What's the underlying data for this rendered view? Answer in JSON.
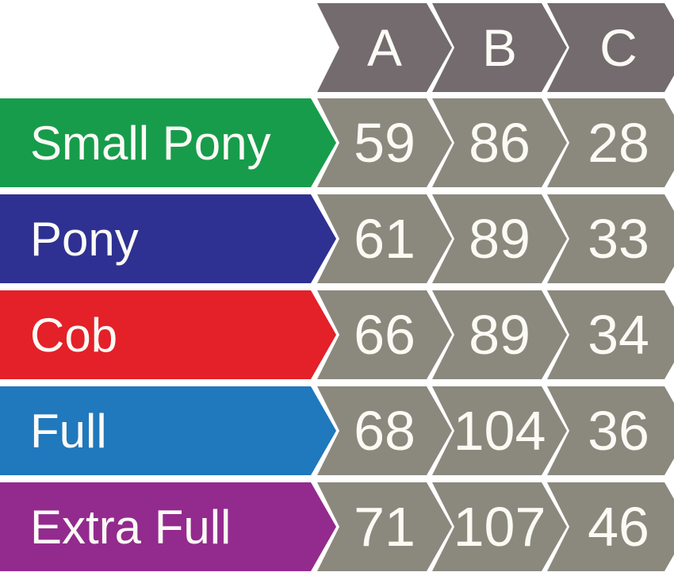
{
  "colors": {
    "header_arrow": "#736b6d",
    "value_arrow": "#8b897d",
    "text": "#fbfaf5",
    "background": "#ffffff"
  },
  "chart_data": {
    "type": "table",
    "title": "",
    "columns": [
      "A",
      "B",
      "C"
    ],
    "rows": [
      {
        "label": "Small Pony",
        "color": "#179c4b",
        "values": [
          59,
          86,
          28
        ]
      },
      {
        "label": "Pony",
        "color": "#2e3192",
        "values": [
          61,
          89,
          33
        ]
      },
      {
        "label": "Cob",
        "color": "#e42029",
        "values": [
          66,
          89,
          34
        ]
      },
      {
        "label": "Full",
        "color": "#2078bd",
        "values": [
          68,
          104,
          36
        ]
      },
      {
        "label": "Extra Full",
        "color": "#932a8e",
        "values": [
          71,
          107,
          46
        ]
      }
    ],
    "layout": "label arrow column followed by measurement columns A, B, C; arrows point right; grid off; no legend"
  }
}
